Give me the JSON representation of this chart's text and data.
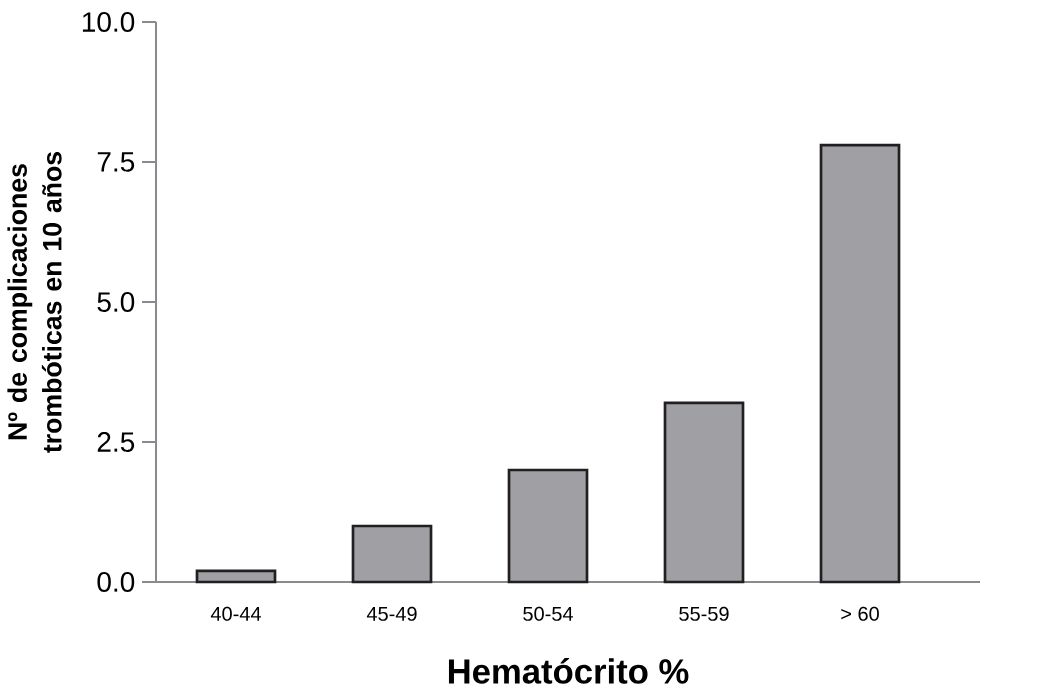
{
  "chart_data": {
    "type": "bar",
    "xlabel": "Hematócrito %",
    "ylabel": "Nº de complicaciones trombóticas en 10 años",
    "categories": [
      "40-44",
      "45-49",
      "50-54",
      "55-59",
      "> 60"
    ],
    "values": [
      0.2,
      1.0,
      2.0,
      3.2,
      7.8
    ],
    "color": "#a09fa4",
    "ylim": [
      0,
      10
    ],
    "yticks": [
      {
        "value": 0,
        "label": "0.0"
      },
      {
        "value": 2.5,
        "label": "2.5"
      },
      {
        "value": 5,
        "label": "5.0"
      },
      {
        "value": 7.5,
        "label": "7.5"
      },
      {
        "value": 10,
        "label": "10.0"
      }
    ]
  }
}
